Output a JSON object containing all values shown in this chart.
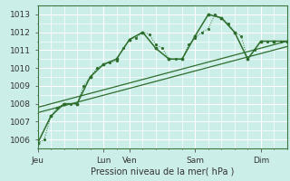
{
  "background_color": "#cceee8",
  "grid_color": "#ffffff",
  "line_color": "#2d6e2d",
  "title": "Pression niveau de la mer( hPa )",
  "ylim": [
    1005.5,
    1013.5
  ],
  "yticks": [
    1006,
    1007,
    1008,
    1009,
    1010,
    1011,
    1012,
    1013
  ],
  "day_labels": [
    "Jeu",
    "Lun",
    "Ven",
    "Sam",
    "Dim"
  ],
  "day_positions": [
    0,
    60,
    84,
    144,
    204
  ],
  "xlim": [
    0,
    228
  ],
  "line1_x": [
    0,
    6,
    12,
    18,
    24,
    30,
    36,
    42,
    48,
    54,
    60,
    66,
    72,
    78,
    84,
    90,
    96,
    102,
    108,
    114,
    120,
    126,
    132,
    138,
    144,
    150,
    156,
    162,
    168,
    174,
    180,
    186,
    192,
    198,
    204,
    210,
    216,
    222,
    228
  ],
  "line1_y": [
    1005.8,
    1006.0,
    1007.3,
    1007.8,
    1008.0,
    1008.0,
    1008.0,
    1009.0,
    1009.5,
    1010.0,
    1010.2,
    1010.3,
    1010.4,
    1011.1,
    1011.6,
    1011.7,
    1012.0,
    1011.9,
    1011.3,
    1011.1,
    1010.5,
    1010.5,
    1010.5,
    1011.3,
    1011.7,
    1012.0,
    1012.2,
    1013.0,
    1012.8,
    1012.5,
    1012.0,
    1011.8,
    1010.5,
    1011.0,
    1011.5,
    1011.5,
    1011.5,
    1011.5,
    1011.5
  ],
  "line2_x": [
    0,
    12,
    24,
    36,
    48,
    60,
    72,
    84,
    96,
    108,
    120,
    132,
    144,
    156,
    168,
    180,
    192,
    204,
    216,
    228
  ],
  "line2_y": [
    1005.8,
    1007.3,
    1008.0,
    1008.0,
    1009.5,
    1010.2,
    1010.5,
    1011.6,
    1012.0,
    1011.1,
    1010.5,
    1010.5,
    1011.8,
    1013.0,
    1012.8,
    1012.0,
    1010.5,
    1011.5,
    1011.5,
    1011.5
  ],
  "trend_x": [
    0,
    228
  ],
  "trend_y": [
    1007.5,
    1011.2
  ],
  "trend2_x": [
    0,
    228
  ],
  "trend2_y": [
    1007.8,
    1011.5
  ]
}
